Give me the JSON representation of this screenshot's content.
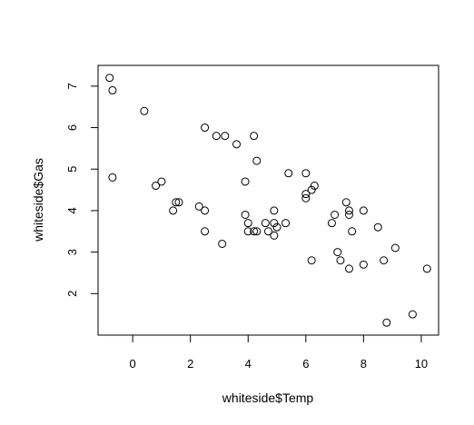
{
  "chart_data": {
    "type": "scatter",
    "xlabel": "whiteside$Temp",
    "ylabel": "whiteside$Gas",
    "xlim": [
      -1.2,
      10.6
    ],
    "ylim": [
      1.0,
      7.5
    ],
    "xticks": [
      0,
      2,
      4,
      6,
      8,
      10
    ],
    "yticks": [
      2,
      3,
      4,
      5,
      6,
      7
    ],
    "points": [
      {
        "x": -0.8,
        "y": 7.2
      },
      {
        "x": -0.7,
        "y": 6.9
      },
      {
        "x": -0.7,
        "y": 4.8
      },
      {
        "x": 0.4,
        "y": 6.4
      },
      {
        "x": 0.8,
        "y": 4.6
      },
      {
        "x": 1.0,
        "y": 4.7
      },
      {
        "x": 1.4,
        "y": 4.0
      },
      {
        "x": 1.5,
        "y": 4.2
      },
      {
        "x": 1.6,
        "y": 4.2
      },
      {
        "x": 2.3,
        "y": 4.1
      },
      {
        "x": 2.5,
        "y": 4.0
      },
      {
        "x": 2.5,
        "y": 3.5
      },
      {
        "x": 2.5,
        "y": 6.0
      },
      {
        "x": 2.9,
        "y": 5.8
      },
      {
        "x": 3.1,
        "y": 3.2
      },
      {
        "x": 3.2,
        "y": 5.8
      },
      {
        "x": 3.6,
        "y": 5.6
      },
      {
        "x": 3.9,
        "y": 4.7
      },
      {
        "x": 3.9,
        "y": 3.9
      },
      {
        "x": 4.0,
        "y": 3.7
      },
      {
        "x": 4.0,
        "y": 3.5
      },
      {
        "x": 4.2,
        "y": 3.5
      },
      {
        "x": 4.2,
        "y": 5.8
      },
      {
        "x": 4.3,
        "y": 3.5
      },
      {
        "x": 4.3,
        "y": 5.2
      },
      {
        "x": 4.6,
        "y": 3.7
      },
      {
        "x": 4.7,
        "y": 3.5
      },
      {
        "x": 4.9,
        "y": 3.7
      },
      {
        "x": 4.9,
        "y": 4.0
      },
      {
        "x": 4.9,
        "y": 3.4
      },
      {
        "x": 5.0,
        "y": 3.6
      },
      {
        "x": 5.3,
        "y": 3.7
      },
      {
        "x": 5.4,
        "y": 4.9
      },
      {
        "x": 6.0,
        "y": 4.3
      },
      {
        "x": 6.0,
        "y": 4.4
      },
      {
        "x": 6.0,
        "y": 4.9
      },
      {
        "x": 6.2,
        "y": 4.5
      },
      {
        "x": 6.2,
        "y": 2.8
      },
      {
        "x": 6.3,
        "y": 4.6
      },
      {
        "x": 6.9,
        "y": 3.7
      },
      {
        "x": 7.0,
        "y": 3.9
      },
      {
        "x": 7.1,
        "y": 3.0
      },
      {
        "x": 7.2,
        "y": 2.8
      },
      {
        "x": 7.4,
        "y": 4.2
      },
      {
        "x": 7.5,
        "y": 4.0
      },
      {
        "x": 7.5,
        "y": 3.9
      },
      {
        "x": 7.5,
        "y": 2.6
      },
      {
        "x": 7.6,
        "y": 3.5
      },
      {
        "x": 8.0,
        "y": 4.0
      },
      {
        "x": 8.0,
        "y": 2.7
      },
      {
        "x": 8.5,
        "y": 3.6
      },
      {
        "x": 8.7,
        "y": 2.8
      },
      {
        "x": 8.8,
        "y": 1.3
      },
      {
        "x": 9.1,
        "y": 3.1
      },
      {
        "x": 9.7,
        "y": 1.5
      },
      {
        "x": 10.2,
        "y": 2.6
      }
    ]
  }
}
